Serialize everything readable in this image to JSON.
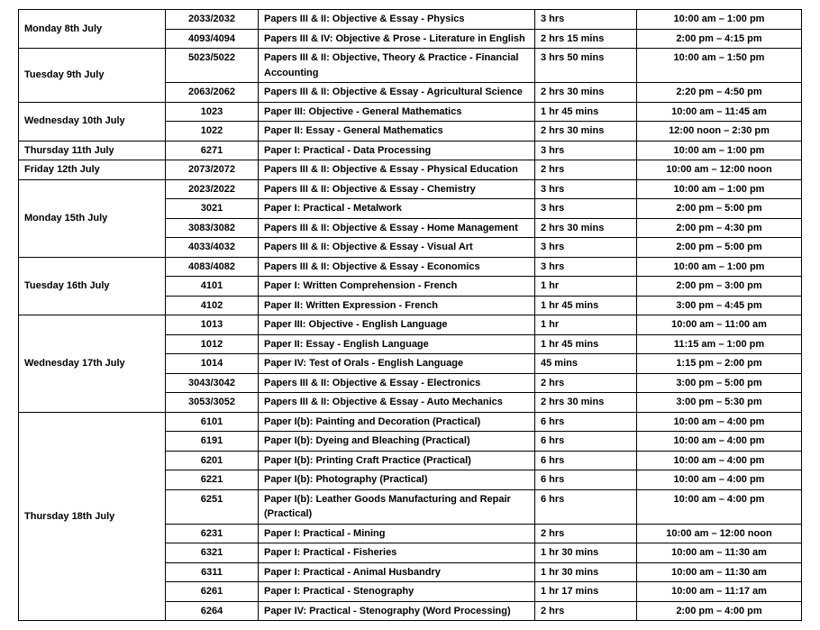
{
  "days": [
    {
      "label": "Monday 8th July",
      "rows": [
        {
          "code": "2033/2032",
          "paper": "Papers III & II: Objective & Essay - Physics",
          "dur": "3 hrs",
          "time": "10:00 am –  1:00 pm"
        },
        {
          "code": "4093/4094",
          "paper": "Papers III & IV: Objective & Prose - Literature in English",
          "dur": "2 hrs 15 mins",
          "time": "2:00 pm – 4:15 pm"
        }
      ]
    },
    {
      "label": "Tuesday 9th  July",
      "rows": [
        {
          "code": "5023/5022",
          "paper": "Papers III & II: Objective, Theory & Practice - Financial Accounting",
          "dur": "3 hrs 50 mins",
          "time": "10:00 am –  1:50 pm"
        },
        {
          "code": "2063/2062",
          "paper": "Papers III & II: Objective & Essay - Agricultural Science",
          "dur": "2 hrs 30 mins",
          "time": "2:20 pm – 4:50 pm"
        }
      ]
    },
    {
      "label": "Wednesday 10th July",
      "rows": [
        {
          "code": "1023",
          "paper": "Paper III: Objective - General Mathematics",
          "dur": "1 hr 45 mins",
          "time": "10:00 am – 11:45 am"
        },
        {
          "code": "1022",
          "paper": "Paper II: Essay - General Mathematics",
          "dur": "2 hrs 30 mins",
          "time": "12:00 noon – 2:30 pm"
        }
      ]
    },
    {
      "label": "Thursday 11th July",
      "rows": [
        {
          "code": "6271",
          "paper": "Paper I: Practical - Data Processing",
          "dur": "3 hrs",
          "time": "10:00 am – 1:00 pm"
        }
      ]
    },
    {
      "label": "Friday 12th July",
      "rows": [
        {
          "code": "2073/2072",
          "paper": "Papers III & II: Objective & Essay - Physical Education",
          "dur": "2 hrs",
          "time": "10:00 am –  12:00 noon"
        }
      ]
    },
    {
      "label": "Monday 15th July",
      "rows": [
        {
          "code": "2023/2022",
          "paper": "Papers III & II: Objective & Essay - Chemistry",
          "dur": "3 hrs",
          "time": "10:00 am –  1:00 pm"
        },
        {
          "code": "3021",
          "paper": "Paper I: Practical - Metalwork",
          "dur": "3 hrs",
          "time": "2:00 pm – 5:00 pm"
        },
        {
          "code": "3083/3082",
          "paper": "Papers III & II: Objective & Essay - Home Management",
          "dur": "2 hrs 30 mins",
          "time": "2:00 pm – 4:30 pm"
        },
        {
          "code": "4033/4032",
          "paper": "Papers III & II: Objective & Essay - Visual Art",
          "dur": "3 hrs",
          "time": "2:00 pm –  5:00 pm"
        }
      ]
    },
    {
      "label": "Tuesday 16th July",
      "rows": [
        {
          "code": "4083/4082",
          "paper": "Papers III & II: Objective & Essay - Economics",
          "dur": "3 hrs",
          "time": "10:00 am –  1:00 pm"
        },
        {
          "code": "4101",
          "paper": "Paper I: Written Comprehension - French",
          "dur": "1 hr",
          "time": "2:00 pm –  3:00 pm"
        },
        {
          "code": "4102",
          "paper": "Paper II: Written Expression - French",
          "dur": "1 hr 45 mins",
          "time": "3:00 pm –  4:45 pm"
        }
      ]
    },
    {
      "label": "Wednesday 17th July",
      "rows": [
        {
          "code": "1013",
          "paper": "Paper III: Objective - English Language",
          "dur": "1 hr",
          "time": "10:00 am – 11:00 am"
        },
        {
          "code": "1012",
          "paper": "Paper II: Essay - English Language",
          "dur": "1 hr 45 mins",
          "time": "11:15 am – 1:00 pm"
        },
        {
          "code": "1014",
          "paper": "Paper IV: Test of Orals - English Language",
          "dur": "45 mins",
          "time": "1:15 pm –  2:00 pm"
        },
        {
          "code": "3043/3042",
          "paper": "Papers III & II: Objective & Essay - Electronics",
          "dur": "2 hrs",
          "time": "3:00 pm –  5:00 pm"
        },
        {
          "code": "3053/3052",
          "paper": "Papers III & II: Objective & Essay - Auto Mechanics",
          "dur": "2 hrs 30 mins",
          "time": "3:00 pm –  5:30 pm"
        }
      ]
    },
    {
      "label": "Thursday 18th July",
      "rows": [
        {
          "code": "6101",
          "paper": "Paper I(b): Painting and Decoration (Practical)",
          "dur": "6 hrs",
          "time": "10:00 am –  4:00 pm"
        },
        {
          "code": "6191",
          "paper": "Paper I(b): Dyeing and Bleaching (Practical)",
          "dur": "6 hrs",
          "time": "10:00 am –  4:00 pm"
        },
        {
          "code": "6201",
          "paper": "Paper I(b): Printing Craft Practice (Practical)",
          "dur": "6 hrs",
          "time": "10:00 am –  4:00 pm"
        },
        {
          "code": "6221",
          "paper": "Paper I(b): Photography (Practical)",
          "dur": "6 hrs",
          "time": "10:00 am –  4:00 pm"
        },
        {
          "code": "6251",
          "paper": "Paper I(b): Leather Goods Manufacturing and Repair (Practical)",
          "dur": "6 hrs",
          "time": "10:00 am –  4:00 pm"
        },
        {
          "code": "6231",
          "paper": "Paper I: Practical - Mining",
          "dur": "2 hrs",
          "time": "10:00 am – 12:00 noon"
        },
        {
          "code": "6321",
          "paper": "Paper I: Practical - Fisheries",
          "dur": "1 hr 30 mins",
          "time": "10:00 am – 11:30 am"
        },
        {
          "code": "6311",
          "paper": "Paper I: Practical - Animal Husbandry",
          "dur": "1 hr 30 mins",
          "time": "10:00 am – 11:30 am"
        },
        {
          "code": "6261",
          "paper": "Paper I: Practical - Stenography",
          "dur": "1 hr 17 mins",
          "time": "10:00 am – 11:17 am"
        },
        {
          "code": "6264",
          "paper": "Paper IV: Practical - Stenography (Word Processing)",
          "dur": "2 hrs",
          "time": "2:00 pm –  4:00 pm"
        }
      ]
    }
  ]
}
